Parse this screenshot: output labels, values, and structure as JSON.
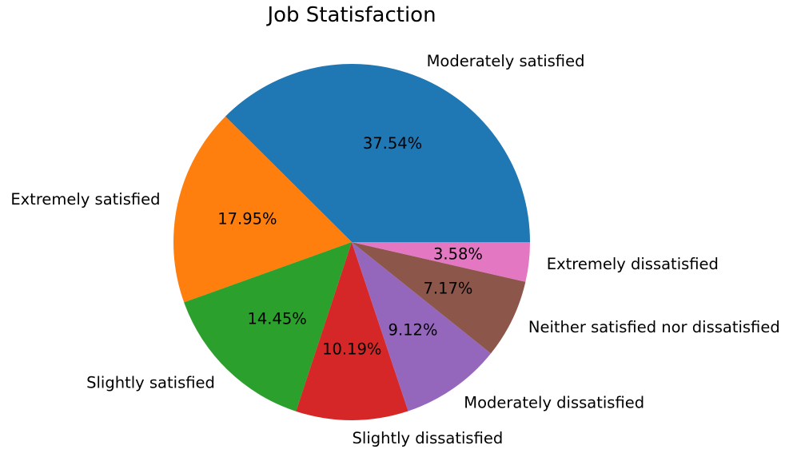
{
  "chart_data": {
    "type": "pie",
    "title": "Job Statisfaction",
    "start_angle_deg": 0,
    "direction": "counterclockwise",
    "slices": [
      {
        "label": "Moderately satisfied",
        "value": 37.54,
        "pct_label": "37.54%",
        "color": "#1f77b4"
      },
      {
        "label": "Extremely satisfied",
        "value": 17.95,
        "pct_label": "17.95%",
        "color": "#ff7f0e"
      },
      {
        "label": "Slightly satisfied",
        "value": 14.45,
        "pct_label": "14.45%",
        "color": "#2ca02c"
      },
      {
        "label": "Slightly dissatisfied",
        "value": 10.19,
        "pct_label": "10.19%",
        "color": "#d62728"
      },
      {
        "label": "Moderately dissatisfied",
        "value": 9.12,
        "pct_label": "9.12%",
        "color": "#9467bd"
      },
      {
        "label": "Neither satisfied nor dissatisfied",
        "value": 7.17,
        "pct_label": "7.17%",
        "color": "#8c564b"
      },
      {
        "label": "Extremely dissatisfied",
        "value": 3.58,
        "pct_label": "3.58%",
        "color": "#e377c2"
      }
    ]
  }
}
